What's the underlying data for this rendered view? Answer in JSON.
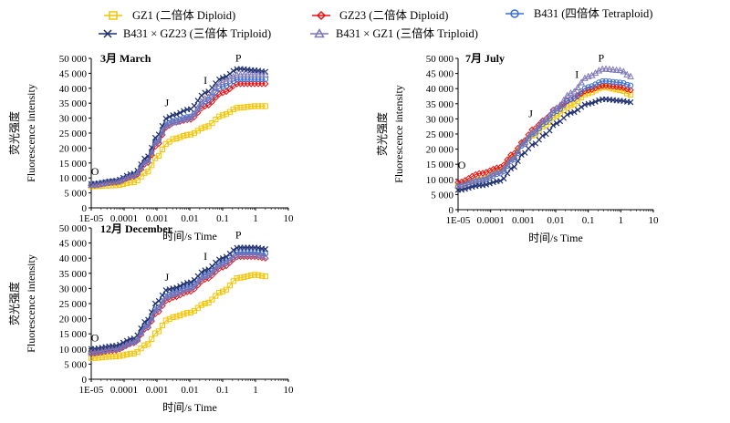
{
  "legend": [
    {
      "key": "gz1",
      "label": "GZ1 (二倍体 Diploid)",
      "color": "#f5c400",
      "marker": "square"
    },
    {
      "key": "gz23",
      "label": "GZ23 (二倍体 Diploid)",
      "color": "#e81010",
      "marker": "diamond"
    },
    {
      "key": "b431",
      "label": "B431 (四倍体 Tetraploid)",
      "color": "#3a6fd0",
      "marker": "circle"
    },
    {
      "key": "b431xgz23",
      "label": "B431 × GZ23 (三倍体 Triploid)",
      "color": "#1f2f6e",
      "marker": "x"
    },
    {
      "key": "b431xgz1",
      "label": "B431 × GZ1 (三倍体 Triploid)",
      "color": "#7c76b8",
      "marker": "triangle"
    }
  ],
  "chart_data": [
    {
      "type": "line",
      "title": "3月 March",
      "xlabel": "时间/s Time",
      "ylabel_cn": "荧光强度",
      "ylabel_en": "Fluorescence intensity",
      "xscale": "log",
      "xlim": [
        1e-05,
        10
      ],
      "ylim": [
        0,
        50000
      ],
      "x_ticks": [
        "1E-05",
        "0.0001",
        "0.001",
        "0.01",
        "0.1",
        "1",
        "10"
      ],
      "y_ticks": [
        "0",
        "5 000",
        "10 000",
        "15 000",
        "20 000",
        "25 000",
        "30 000",
        "35 000",
        "40 000",
        "45 000",
        "50 000"
      ],
      "ojip_points": [
        {
          "label": "O",
          "x": 1.3e-05,
          "y": 11000
        },
        {
          "label": "J",
          "x": 0.002,
          "y": 34000
        },
        {
          "label": "I",
          "x": 0.03,
          "y": 41500
        },
        {
          "label": "P",
          "x": 0.3,
          "y": 49000
        }
      ],
      "series": [
        {
          "key": "gz1",
          "anchors": [
            [
              1e-05,
              7200
            ],
            [
              5e-05,
              7500
            ],
            [
              0.0002,
              8600
            ],
            [
              0.0005,
              12000
            ],
            [
              0.001,
              17000
            ],
            [
              0.002,
              21500
            ],
            [
              0.003,
              23000
            ],
            [
              0.01,
              24500
            ],
            [
              0.03,
              27000
            ],
            [
              0.1,
              31000
            ],
            [
              0.3,
              33500
            ],
            [
              1,
              34000
            ],
            [
              2,
              34000
            ]
          ]
        },
        {
          "key": "gz23",
          "anchors": [
            [
              1e-05,
              7500
            ],
            [
              5e-05,
              8500
            ],
            [
              0.0002,
              10500
            ],
            [
              0.0005,
              15000
            ],
            [
              0.001,
              21000
            ],
            [
              0.002,
              27000
            ],
            [
              0.003,
              28500
            ],
            [
              0.01,
              29500
            ],
            [
              0.03,
              34000
            ],
            [
              0.1,
              38500
            ],
            [
              0.3,
              41500
            ],
            [
              1,
              41500
            ],
            [
              2,
              41500
            ]
          ]
        },
        {
          "key": "b431",
          "anchors": [
            [
              1e-05,
              7800
            ],
            [
              5e-05,
              8800
            ],
            [
              0.0002,
              11000
            ],
            [
              0.0005,
              16000
            ],
            [
              0.001,
              22500
            ],
            [
              0.002,
              28000
            ],
            [
              0.003,
              29000
            ],
            [
              0.01,
              30500
            ],
            [
              0.03,
              35500
            ],
            [
              0.1,
              40500
            ],
            [
              0.3,
              43000
            ],
            [
              1,
              43000
            ],
            [
              2,
              43000
            ]
          ]
        },
        {
          "key": "b431xgz23",
          "anchors": [
            [
              1e-05,
              8000
            ],
            [
              5e-05,
              9000
            ],
            [
              0.0002,
              11500
            ],
            [
              0.0005,
              17000
            ],
            [
              0.001,
              24000
            ],
            [
              0.002,
              30000
            ],
            [
              0.003,
              31000
            ],
            [
              0.01,
              33000
            ],
            [
              0.03,
              38500
            ],
            [
              0.1,
              43500
            ],
            [
              0.3,
              46500
            ],
            [
              1,
              46000
            ],
            [
              2,
              45500
            ]
          ]
        },
        {
          "key": "b431xgz1",
          "anchors": [
            [
              1e-05,
              7600
            ],
            [
              5e-05,
              8600
            ],
            [
              0.0002,
              10800
            ],
            [
              0.0005,
              15500
            ],
            [
              0.001,
              22000
            ],
            [
              0.002,
              27500
            ],
            [
              0.003,
              28500
            ],
            [
              0.01,
              30000
            ],
            [
              0.03,
              36500
            ],
            [
              0.1,
              42000
            ],
            [
              0.3,
              44500
            ],
            [
              1,
              44500
            ],
            [
              2,
              44500
            ]
          ]
        }
      ]
    },
    {
      "type": "line",
      "title": "7月 July",
      "xlabel": "时间/s Time",
      "ylabel_cn": "荧光强度",
      "ylabel_en": "Fluorescence intensity",
      "xscale": "log",
      "xlim": [
        1e-05,
        10
      ],
      "ylim": [
        0,
        50000
      ],
      "x_ticks": [
        "1E-05",
        "0.0001",
        "0.001",
        "0.01",
        "0.1",
        "1",
        "10"
      ],
      "y_ticks": [
        "0",
        "5 000",
        "10 000",
        "15 000",
        "20 000",
        "25 000",
        "30 000",
        "35 000",
        "40 000",
        "45 000",
        "50 000"
      ],
      "ojip_points": [
        {
          "label": "O",
          "x": 1.3e-05,
          "y": 13500
        },
        {
          "label": "J",
          "x": 0.0017,
          "y": 30500
        },
        {
          "label": "I",
          "x": 0.045,
          "y": 43500
        },
        {
          "label": "P",
          "x": 0.25,
          "y": 49000
        }
      ],
      "series": [
        {
          "key": "gz1",
          "anchors": [
            [
              1e-05,
              8000
            ],
            [
              5e-05,
              10000
            ],
            [
              0.0002,
              13000
            ],
            [
              0.0005,
              17500
            ],
            [
              0.001,
              22000
            ],
            [
              0.002,
              24500
            ],
            [
              0.005,
              28000
            ],
            [
              0.01,
              31000
            ],
            [
              0.03,
              34500
            ],
            [
              0.1,
              38500
            ],
            [
              0.3,
              40500
            ],
            [
              1,
              39500
            ],
            [
              2,
              38000
            ]
          ]
        },
        {
          "key": "gz23",
          "anchors": [
            [
              1e-05,
              9000
            ],
            [
              5e-05,
              12000
            ],
            [
              0.0002,
              14000
            ],
            [
              0.0005,
              18500
            ],
            [
              0.001,
              22500
            ],
            [
              0.002,
              26500
            ],
            [
              0.005,
              30000
            ],
            [
              0.01,
              33500
            ],
            [
              0.03,
              36500
            ],
            [
              0.1,
              39500
            ],
            [
              0.3,
              41000
            ],
            [
              1,
              40500
            ],
            [
              2,
              39500
            ]
          ]
        },
        {
          "key": "b431",
          "anchors": [
            [
              1e-05,
              7500
            ],
            [
              5e-05,
              9500
            ],
            [
              0.0002,
              12000
            ],
            [
              0.0005,
              16500
            ],
            [
              0.001,
              21500
            ],
            [
              0.002,
              25000
            ],
            [
              0.005,
              29000
            ],
            [
              0.01,
              32500
            ],
            [
              0.03,
              36500
            ],
            [
              0.1,
              40500
            ],
            [
              0.3,
              42500
            ],
            [
              1,
              42000
            ],
            [
              2,
              41000
            ]
          ]
        },
        {
          "key": "b431xgz23",
          "anchors": [
            [
              1e-05,
              6500
            ],
            [
              5e-05,
              8000
            ],
            [
              0.0002,
              9500
            ],
            [
              0.0005,
              14000
            ],
            [
              0.001,
              18500
            ],
            [
              0.002,
              21500
            ],
            [
              0.005,
              25000
            ],
            [
              0.01,
              28500
            ],
            [
              0.03,
              32000
            ],
            [
              0.1,
              35000
            ],
            [
              0.3,
              36500
            ],
            [
              1,
              36000
            ],
            [
              2,
              35500
            ]
          ]
        },
        {
          "key": "b431xgz1",
          "anchors": [
            [
              1e-05,
              8000
            ],
            [
              5e-05,
              10000
            ],
            [
              0.0002,
              12500
            ],
            [
              0.0005,
              17000
            ],
            [
              0.001,
              22000
            ],
            [
              0.002,
              25500
            ],
            [
              0.005,
              30000
            ],
            [
              0.01,
              33500
            ],
            [
              0.03,
              38500
            ],
            [
              0.1,
              44000
            ],
            [
              0.3,
              46500
            ],
            [
              1,
              46000
            ],
            [
              2,
              44000
            ]
          ]
        }
      ]
    },
    {
      "type": "line",
      "title": "12月 December",
      "xlabel": "时间/s Time",
      "ylabel_cn": "荧光强度",
      "ylabel_en": "Fluorescence intensity",
      "xscale": "log",
      "xlim": [
        1e-05,
        10
      ],
      "ylim": [
        0,
        50000
      ],
      "x_ticks": [
        "1E-05",
        "0.0001",
        "0.001",
        "0.01",
        "0.1",
        "1",
        "10"
      ],
      "y_ticks": [
        "0",
        "5 000",
        "10 000",
        "15 000",
        "20 000",
        "25 000",
        "30 000",
        "35 000",
        "40 000",
        "45 000",
        "50 000"
      ],
      "ojip_points": [
        {
          "label": "O",
          "x": 1.3e-05,
          "y": 12500
        },
        {
          "label": "J",
          "x": 0.002,
          "y": 32500
        },
        {
          "label": "I",
          "x": 0.03,
          "y": 39500
        },
        {
          "label": "P",
          "x": 0.3,
          "y": 46500
        }
      ],
      "series": [
        {
          "key": "gz1",
          "anchors": [
            [
              1e-05,
              7000
            ],
            [
              5e-05,
              7500
            ],
            [
              0.0002,
              8500
            ],
            [
              0.0005,
              11500
            ],
            [
              0.001,
              15500
            ],
            [
              0.002,
              19500
            ],
            [
              0.003,
              20500
            ],
            [
              0.01,
              22000
            ],
            [
              0.03,
              25000
            ],
            [
              0.1,
              29000
            ],
            [
              0.3,
              33500
            ],
            [
              1,
              34500
            ],
            [
              2,
              34000
            ]
          ]
        },
        {
          "key": "gz23",
          "anchors": [
            [
              1e-05,
              8500
            ],
            [
              5e-05,
              9500
            ],
            [
              0.0002,
              12000
            ],
            [
              0.0005,
              17000
            ],
            [
              0.001,
              22000
            ],
            [
              0.002,
              26000
            ],
            [
              0.003,
              27000
            ],
            [
              0.01,
              29000
            ],
            [
              0.03,
              33000
            ],
            [
              0.1,
              37000
            ],
            [
              0.3,
              40500
            ],
            [
              1,
              40500
            ],
            [
              2,
              40000
            ]
          ]
        },
        {
          "key": "b431",
          "anchors": [
            [
              1e-05,
              9000
            ],
            [
              5e-05,
              10000
            ],
            [
              0.0002,
              12500
            ],
            [
              0.0005,
              18000
            ],
            [
              0.001,
              23500
            ],
            [
              0.002,
              27500
            ],
            [
              0.003,
              28500
            ],
            [
              0.01,
              30500
            ],
            [
              0.03,
              34500
            ],
            [
              0.1,
              38500
            ],
            [
              0.3,
              42000
            ],
            [
              1,
              42000
            ],
            [
              2,
              41500
            ]
          ]
        },
        {
          "key": "b431xgz23",
          "anchors": [
            [
              1e-05,
              10000
            ],
            [
              5e-05,
              11000
            ],
            [
              0.0002,
              13500
            ],
            [
              0.0005,
              19500
            ],
            [
              0.001,
              25500
            ],
            [
              0.002,
              29500
            ],
            [
              0.003,
              30000
            ],
            [
              0.01,
              32000
            ],
            [
              0.03,
              36000
            ],
            [
              0.1,
              40000
            ],
            [
              0.3,
              43500
            ],
            [
              1,
              43500
            ],
            [
              2,
              43000
            ]
          ]
        },
        {
          "key": "b431xgz1",
          "anchors": [
            [
              1e-05,
              8800
            ],
            [
              5e-05,
              9800
            ],
            [
              0.0002,
              12200
            ],
            [
              0.0005,
              17500
            ],
            [
              0.001,
              23000
            ],
            [
              0.002,
              27000
            ],
            [
              0.003,
              28000
            ],
            [
              0.01,
              30000
            ],
            [
              0.03,
              34000
            ],
            [
              0.1,
              38000
            ],
            [
              0.3,
              41000
            ],
            [
              1,
              41000
            ],
            [
              2,
              40500
            ]
          ]
        }
      ]
    }
  ]
}
